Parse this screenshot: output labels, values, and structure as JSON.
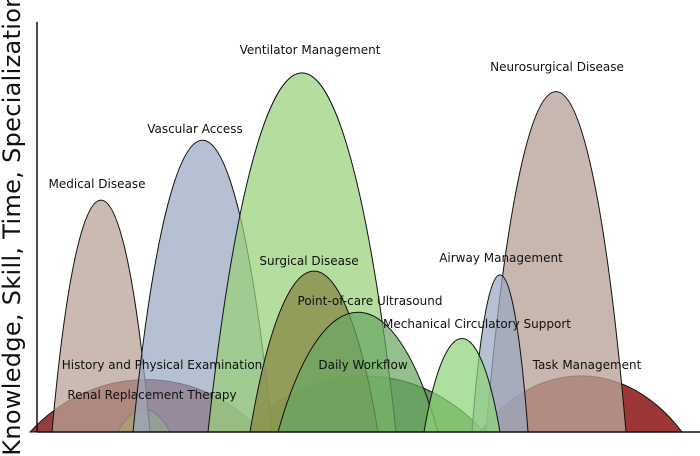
{
  "chart_data": {
    "type": "area",
    "title": "",
    "xlabel": "",
    "ylabel": "Knowledge, Skill, Time, Specialization",
    "areas": [
      {
        "label": "Daily Workflow",
        "level": 0.15,
        "color": "#2f6a2a"
      },
      {
        "label": "Task Management",
        "level": 0.15,
        "color": "#8f1a1a"
      },
      {
        "label": "History and Physical Examination",
        "level": 0.14,
        "color": "#7e1414"
      },
      {
        "label": "Renal Replacement Therapy",
        "level": 0.06,
        "color": "#8c8c1c"
      },
      {
        "label": "Medical Disease",
        "level": 0.62,
        "color": "#b8a397"
      },
      {
        "label": "Vascular Access",
        "level": 0.78,
        "color": "#98a8c0"
      },
      {
        "label": "Ventilator Management",
        "level": 0.96,
        "color": "#98d078"
      },
      {
        "label": "Neurosurgical Disease",
        "level": 0.91,
        "color": "#b8a398"
      },
      {
        "label": "Airway Management",
        "level": 0.42,
        "color": "#98a8c0"
      },
      {
        "label": "Surgical Disease",
        "level": 0.43,
        "color": "#8a8f4a"
      },
      {
        "label": "Point-of-care Ultrasound",
        "level": 0.32,
        "color": "#6aa862"
      },
      {
        "label": "Mechanical Circulatory Support",
        "level": 0.25,
        "color": "#8ed478"
      }
    ]
  }
}
